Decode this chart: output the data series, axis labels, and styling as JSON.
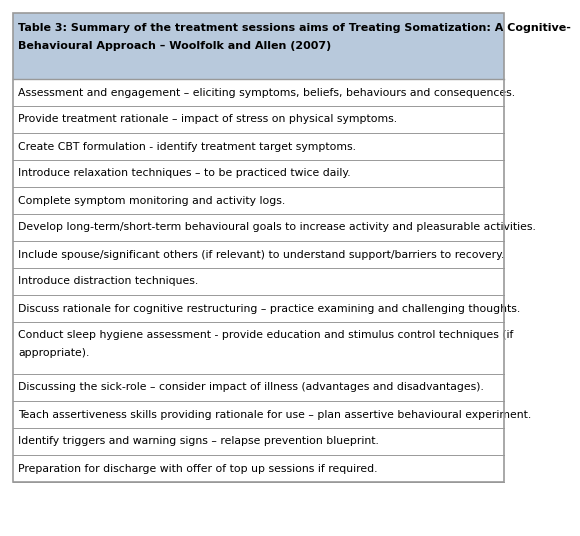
{
  "title_line1": "Table 3: Summary of the treatment sessions aims of Treating Somatization: A Cognitive-",
  "title_line2": "Behavioural Approach – Woolfolk and Allen (2007)",
  "header_bg": "#b8c9dc",
  "row_bg_odd": "#f5f5f5",
  "row_bg_even": "#ffffff",
  "border_color": "#999999",
  "title_fontsize": 8.0,
  "row_fontsize": 7.8,
  "rows": [
    "Assessment and engagement – eliciting symptoms, beliefs, behaviours and consequences.",
    "Provide treatment rationale – impact of stress on physical symptoms.",
    "Create CBT formulation - identify treatment target symptoms.",
    "Introduce relaxation techniques – to be practiced twice daily.",
    "Complete symptom monitoring and activity logs.",
    "Develop long-term/short-term behavioural goals to increase activity and pleasurable activities.",
    "Include spouse/significant others (if relevant) to understand support/barriers to recovery.",
    "Introduce distraction techniques.",
    "Discuss rationale for cognitive restructuring – practice examining and challenging thoughts.",
    "Conduct sleep hygiene assessment - provide education and stimulus control techniques (if\nappropriate).",
    "Discussing the sick-role – consider impact of illness (advantages and disadvantages).",
    "Teach assertiveness skills providing rationale for use – plan assertive behavioural experiment.",
    "Identify triggers and warning signs – relapse prevention blueprint.",
    "Preparation for discharge with offer of top up sessions if required."
  ]
}
